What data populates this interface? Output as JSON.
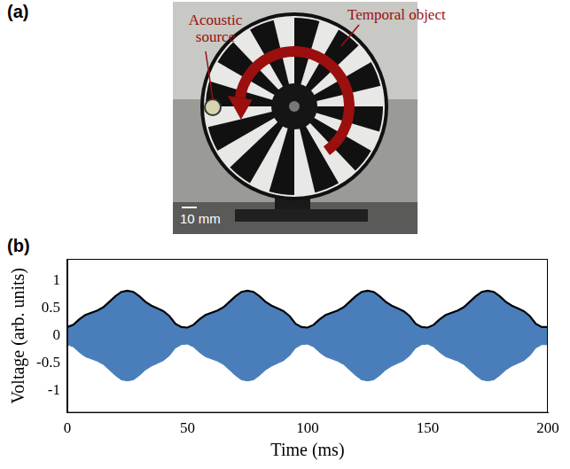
{
  "figure": {
    "panel_a": {
      "label": "(a)",
      "source_label": "Acoustic source",
      "object_label": "Temporal object",
      "scale_bar": "10 mm"
    },
    "panel_b_label": "(b)"
  },
  "chart_data": {
    "type": "line",
    "x_label": "Time (ms)",
    "y_label": "Voltage (arb. units)",
    "x": [
      0,
      2.5,
      5,
      7.5,
      10,
      12.5,
      15,
      17.5,
      20,
      22.5,
      25,
      27.5,
      30,
      32.5,
      35,
      37.5,
      40,
      42.5,
      45,
      47.5,
      50,
      52.5,
      55,
      57.5,
      60,
      62.5,
      65,
      67.5,
      70,
      72.5,
      75,
      77.5,
      80,
      82.5,
      85,
      87.5,
      90,
      92.5,
      95,
      97.5,
      100,
      102.5,
      105,
      107.5,
      110,
      112.5,
      115,
      117.5,
      120,
      122.5,
      125,
      127.5,
      130,
      132.5,
      135,
      137.5,
      140,
      142.5,
      145,
      147.5,
      150,
      152.5,
      155,
      157.5,
      160,
      162.5,
      165,
      167.5,
      170,
      172.5,
      175,
      177.5,
      180,
      182.5,
      185,
      187.5,
      190,
      192.5,
      195,
      197.5,
      200
    ],
    "series": [
      {
        "color": "#000000",
        "values": [
          0.16,
          0.2,
          0.3,
          0.38,
          0.42,
          0.46,
          0.52,
          0.62,
          0.72,
          0.8,
          0.82,
          0.8,
          0.72,
          0.62,
          0.55,
          0.5,
          0.45,
          0.36,
          0.22,
          0.16,
          0.15,
          0.2,
          0.3,
          0.38,
          0.42,
          0.46,
          0.52,
          0.62,
          0.72,
          0.8,
          0.82,
          0.8,
          0.72,
          0.62,
          0.55,
          0.5,
          0.45,
          0.36,
          0.22,
          0.16,
          0.15,
          0.2,
          0.3,
          0.38,
          0.42,
          0.46,
          0.52,
          0.62,
          0.72,
          0.8,
          0.82,
          0.8,
          0.72,
          0.62,
          0.55,
          0.5,
          0.45,
          0.36,
          0.22,
          0.16,
          0.15,
          0.2,
          0.3,
          0.38,
          0.42,
          0.46,
          0.52,
          0.62,
          0.72,
          0.8,
          0.82,
          0.8,
          0.72,
          0.62,
          0.55,
          0.5,
          0.45,
          0.36,
          0.22,
          0.16,
          0.16
        ]
      },
      {
        "color": "#4a7ebb",
        "values": [
          -0.16,
          -0.2,
          -0.3,
          -0.38,
          -0.42,
          -0.46,
          -0.52,
          -0.62,
          -0.72,
          -0.8,
          -0.82,
          -0.8,
          -0.72,
          -0.62,
          -0.55,
          -0.5,
          -0.45,
          -0.36,
          -0.22,
          -0.16,
          -0.15,
          -0.2,
          -0.3,
          -0.38,
          -0.42,
          -0.46,
          -0.52,
          -0.62,
          -0.72,
          -0.8,
          -0.82,
          -0.8,
          -0.72,
          -0.62,
          -0.55,
          -0.5,
          -0.45,
          -0.36,
          -0.22,
          -0.16,
          -0.15,
          -0.2,
          -0.3,
          -0.38,
          -0.42,
          -0.46,
          -0.52,
          -0.62,
          -0.72,
          -0.8,
          -0.82,
          -0.8,
          -0.72,
          -0.62,
          -0.55,
          -0.5,
          -0.45,
          -0.36,
          -0.22,
          -0.16,
          -0.15,
          -0.2,
          -0.3,
          -0.38,
          -0.42,
          -0.46,
          -0.52,
          -0.62,
          -0.72,
          -0.8,
          -0.82,
          -0.8,
          -0.72,
          -0.62,
          -0.55,
          -0.5,
          -0.45,
          -0.36,
          -0.22,
          -0.16,
          -0.16
        ]
      }
    ],
    "xlim": [
      0,
      200
    ],
    "xticks": [
      0,
      50,
      100,
      150,
      200
    ],
    "ylim": [
      -1.4,
      1.4
    ],
    "yticks": [
      -1,
      -0.5,
      0,
      0.5,
      1
    ],
    "grid": false
  }
}
